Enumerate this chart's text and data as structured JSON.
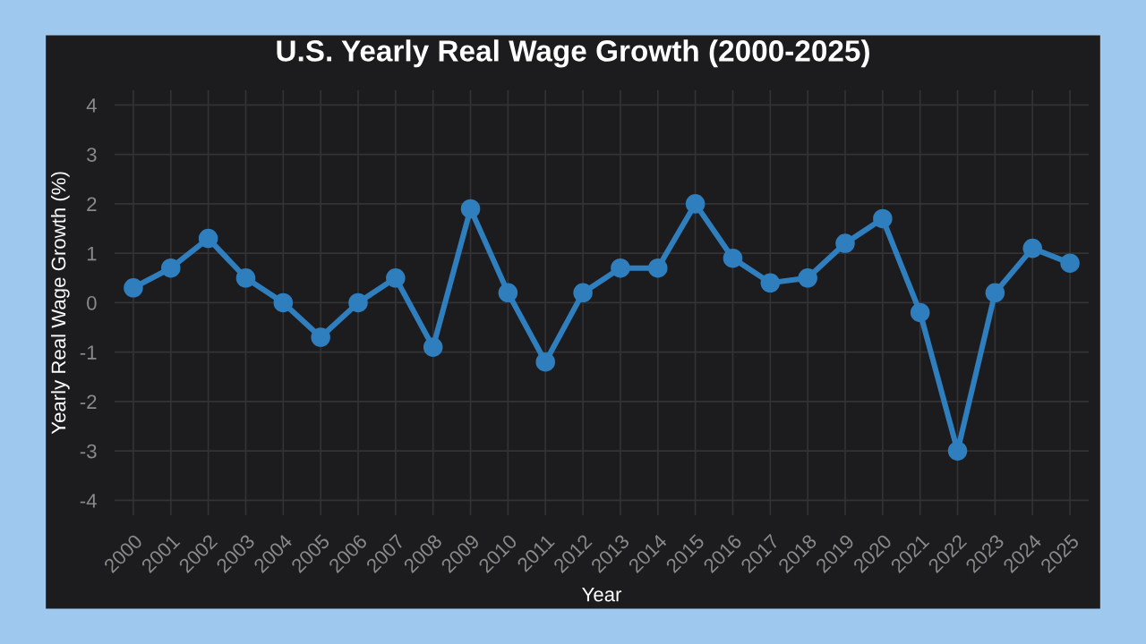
{
  "chart_data": {
    "type": "line",
    "title": "U.S. Yearly Real Wage Growth (2000-2025)",
    "xlabel": "Year",
    "ylabel": "Yearly Real Wage Growth (%)",
    "categories": [
      "2000",
      "2001",
      "2002",
      "2003",
      "2004",
      "2005",
      "2006",
      "2007",
      "2008",
      "2009",
      "2010",
      "2011",
      "2012",
      "2013",
      "2014",
      "2015",
      "2016",
      "2017",
      "2018",
      "2019",
      "2020",
      "2021",
      "2022",
      "2023",
      "2024",
      "2025"
    ],
    "series": [
      {
        "color": "#2f7fbf",
        "values": [
          0.3,
          0.7,
          1.3,
          0.5,
          0,
          -0.7,
          0,
          0.5,
          -0.9,
          1.9,
          0.2,
          -1.2,
          0.2,
          0.7,
          0.7,
          2.0,
          0.9,
          0.4,
          0.5,
          1.2,
          1.7,
          -0.2,
          -3.0,
          0.2,
          1.1,
          0.8
        ]
      }
    ],
    "ylim": [
      -4.3,
      4.3
    ],
    "yticks": [
      -4,
      -3,
      -2,
      -1,
      0,
      1,
      2,
      3,
      4
    ],
    "grid": true,
    "marker": "circle",
    "line_style": "solid"
  }
}
